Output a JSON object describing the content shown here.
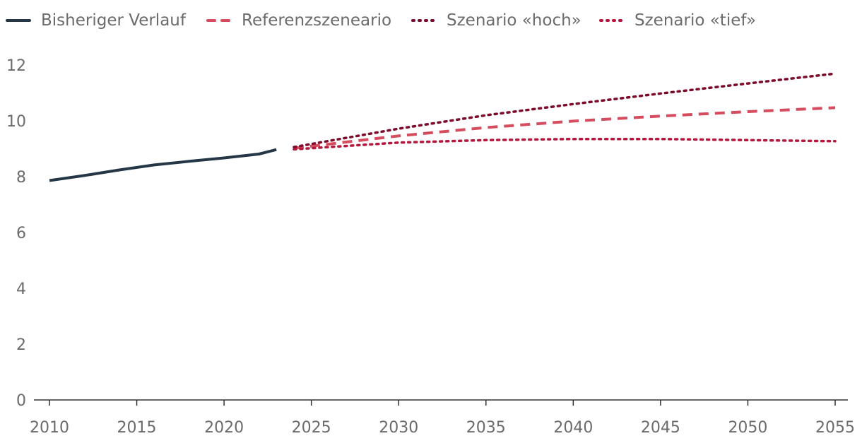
{
  "chart_data": {
    "type": "line",
    "title": "",
    "xlabel": "",
    "ylabel": "",
    "xlim": [
      2010,
      2055
    ],
    "ylim": [
      0,
      12
    ],
    "y_ticks": [
      0,
      2,
      4,
      6,
      8,
      10,
      12
    ],
    "x_ticks": [
      2010,
      2015,
      2020,
      2025,
      2030,
      2035,
      2040,
      2045,
      2050,
      2055
    ],
    "grid": false,
    "legend_position": "top-left",
    "series": [
      {
        "name": "Bisheriger Verlauf",
        "style": "solid",
        "color": "#253746",
        "x": [
          2010,
          2012,
          2014,
          2016,
          2018,
          2019,
          2020,
          2021,
          2022,
          2023
        ],
        "y": [
          7.86,
          8.04,
          8.24,
          8.42,
          8.55,
          8.61,
          8.67,
          8.74,
          8.81,
          8.97
        ]
      },
      {
        "name": "Referenzszeneario",
        "style": "dashed",
        "color": "#d44c5e",
        "x": [
          2024,
          2030,
          2035,
          2040,
          2045,
          2050,
          2055
        ],
        "y": [
          9.02,
          9.46,
          9.76,
          9.99,
          10.17,
          10.33,
          10.47
        ]
      },
      {
        "name": "Szenario «hoch»",
        "style": "dotted",
        "color": "#7d0a2a",
        "x": [
          2024,
          2030,
          2035,
          2040,
          2045,
          2050,
          2055
        ],
        "y": [
          9.06,
          9.72,
          10.2,
          10.6,
          10.98,
          11.34,
          11.69
        ]
      },
      {
        "name": "Szenario «tief»",
        "style": "dotted",
        "color": "#b5163b",
        "x": [
          2024,
          2030,
          2035,
          2040,
          2045,
          2050,
          2055
        ],
        "y": [
          8.98,
          9.22,
          9.31,
          9.35,
          9.35,
          9.31,
          9.27
        ]
      }
    ]
  }
}
